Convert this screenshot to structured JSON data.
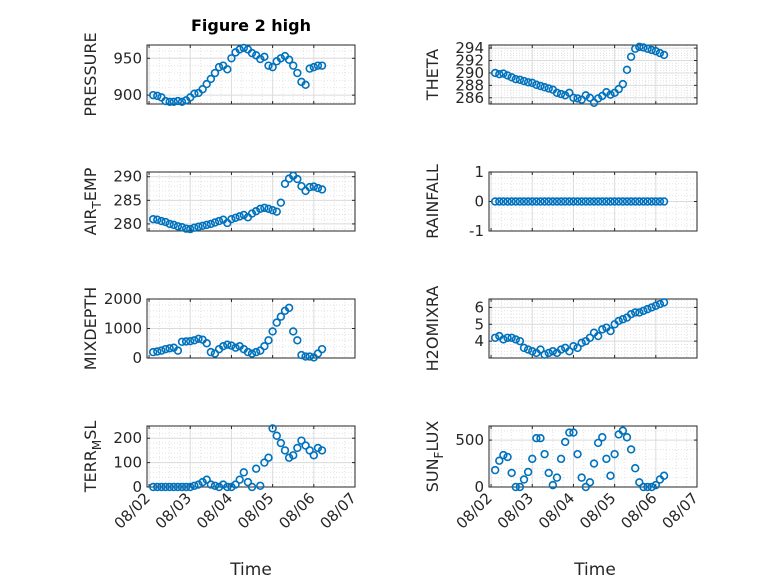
{
  "figure": {
    "title": "Figure 2 high",
    "xlabel": "Time",
    "marker_color": "#0072bd"
  },
  "x_ticks": [
    "08/02",
    "08/03",
    "08/04",
    "08/05",
    "08/06",
    "08/07"
  ],
  "chart_data": [
    {
      "type": "scatter",
      "ylabel": "PRESSURE",
      "grid": true,
      "xlim": [
        "08/02",
        "08/07"
      ],
      "ylim": [
        888,
        968
      ],
      "yticks": [
        900,
        950
      ],
      "x": [
        2.1,
        2.2,
        2.3,
        2.4,
        2.5,
        2.6,
        2.7,
        2.8,
        2.9,
        3.0,
        3.1,
        3.2,
        3.3,
        3.4,
        3.5,
        3.6,
        3.7,
        3.8,
        3.9,
        4.0,
        4.1,
        4.2,
        4.3,
        4.4,
        4.5,
        4.6,
        4.7,
        4.8,
        4.9,
        5.0,
        5.1,
        5.2,
        5.3,
        5.4,
        5.5,
        5.6,
        5.7,
        5.8,
        5.9,
        6.0,
        6.1,
        6.2
      ],
      "y": [
        900,
        899,
        897,
        892,
        891,
        891,
        892,
        891,
        893,
        897,
        902,
        903,
        908,
        915,
        922,
        930,
        938,
        940,
        935,
        950,
        958,
        962,
        964,
        962,
        957,
        954,
        949,
        952,
        940,
        938,
        946,
        950,
        953,
        948,
        940,
        930,
        918,
        914,
        936,
        938,
        940,
        940
      ]
    },
    {
      "type": "scatter",
      "ylabel": "THETA",
      "grid": true,
      "xlim": [
        "08/02",
        "08/07"
      ],
      "ylim": [
        285,
        294.5
      ],
      "yticks": [
        286,
        288,
        290,
        292,
        294
      ],
      "x": [
        2.1,
        2.2,
        2.3,
        2.4,
        2.5,
        2.6,
        2.7,
        2.8,
        2.9,
        3.0,
        3.1,
        3.2,
        3.3,
        3.4,
        3.5,
        3.6,
        3.7,
        3.8,
        3.9,
        4.0,
        4.1,
        4.2,
        4.3,
        4.4,
        4.5,
        4.6,
        4.7,
        4.8,
        4.9,
        5.0,
        5.1,
        5.2,
        5.3,
        5.4,
        5.5,
        5.6,
        5.7,
        5.8,
        5.9,
        6.0,
        6.1,
        6.2
      ],
      "y": [
        290.0,
        289.8,
        289.9,
        289.6,
        289.3,
        289.0,
        288.9,
        288.7,
        288.5,
        288.4,
        288.1,
        287.9,
        287.7,
        287.5,
        287.3,
        286.8,
        286.6,
        286.4,
        286.8,
        286.0,
        285.9,
        285.7,
        286.4,
        286.0,
        285.2,
        285.9,
        286.3,
        286.9,
        286.5,
        286.8,
        287.4,
        288.2,
        290.5,
        292.6,
        293.9,
        294.2,
        294.1,
        293.9,
        293.7,
        293.5,
        293.2,
        292.9
      ]
    },
    {
      "type": "scatter",
      "ylabel": "AIR_TEMP",
      "grid": true,
      "xlim": [
        "08/02",
        "08/07"
      ],
      "ylim": [
        278.5,
        291
      ],
      "yticks": [
        280,
        285,
        290
      ],
      "x": [
        2.1,
        2.2,
        2.3,
        2.4,
        2.5,
        2.6,
        2.7,
        2.8,
        2.9,
        3.0,
        3.1,
        3.2,
        3.3,
        3.4,
        3.5,
        3.6,
        3.7,
        3.8,
        3.9,
        4.0,
        4.1,
        4.2,
        4.3,
        4.4,
        4.5,
        4.6,
        4.7,
        4.8,
        4.9,
        5.0,
        5.1,
        5.2,
        5.3,
        5.4,
        5.5,
        5.6,
        5.7,
        5.8,
        5.9,
        6.0,
        6.1,
        6.2
      ],
      "y": [
        281.0,
        280.9,
        280.6,
        280.4,
        280.0,
        279.8,
        279.5,
        279.3,
        279.0,
        278.9,
        279.2,
        279.4,
        279.6,
        279.8,
        280.0,
        280.3,
        280.6,
        280.9,
        280.2,
        281.0,
        281.3,
        281.6,
        281.9,
        281.4,
        282.2,
        282.7,
        283.2,
        283.4,
        283.2,
        282.9,
        282.6,
        284.5,
        288.5,
        289.6,
        290.2,
        289.5,
        288.0,
        287.0,
        287.8,
        287.9,
        287.6,
        287.3
      ]
    },
    {
      "type": "scatter",
      "ylabel": "RAINFALL",
      "grid": true,
      "xlim": [
        "08/02",
        "08/07"
      ],
      "ylim": [
        -1,
        1
      ],
      "yticks": [
        -1,
        0,
        1
      ],
      "x": [
        2.1,
        2.2,
        2.3,
        2.4,
        2.5,
        2.6,
        2.7,
        2.8,
        2.9,
        3.0,
        3.1,
        3.2,
        3.3,
        3.4,
        3.5,
        3.6,
        3.7,
        3.8,
        3.9,
        4.0,
        4.1,
        4.2,
        4.3,
        4.4,
        4.5,
        4.6,
        4.7,
        4.8,
        4.9,
        5.0,
        5.1,
        5.2,
        5.3,
        5.4,
        5.5,
        5.6,
        5.7,
        5.8,
        5.9,
        6.0,
        6.1,
        6.2
      ],
      "y": [
        0,
        0,
        0,
        0,
        0,
        0,
        0,
        0,
        0,
        0,
        0,
        0,
        0,
        0,
        0,
        0,
        0,
        0,
        0,
        0,
        0,
        0,
        0,
        0,
        0,
        0,
        0,
        0,
        0,
        0,
        0,
        0,
        0,
        0,
        0,
        0,
        0,
        0,
        0,
        0,
        0,
        0
      ]
    },
    {
      "type": "scatter",
      "ylabel": "MIXDEPTH",
      "grid": true,
      "xlim": [
        "08/02",
        "08/07"
      ],
      "ylim": [
        0,
        2000
      ],
      "yticks": [
        0,
        1000,
        2000
      ],
      "x": [
        2.1,
        2.2,
        2.3,
        2.4,
        2.5,
        2.6,
        2.7,
        2.8,
        2.9,
        3.0,
        3.1,
        3.2,
        3.3,
        3.4,
        3.5,
        3.6,
        3.7,
        3.8,
        3.9,
        4.0,
        4.1,
        4.2,
        4.3,
        4.4,
        4.5,
        4.6,
        4.7,
        4.8,
        4.9,
        5.0,
        5.1,
        5.2,
        5.3,
        5.4,
        5.5,
        5.6,
        5.7,
        5.8,
        5.9,
        6.0,
        6.1,
        6.2
      ],
      "y": [
        200,
        220,
        250,
        300,
        330,
        350,
        250,
        550,
        560,
        570,
        600,
        650,
        620,
        500,
        200,
        150,
        300,
        400,
        450,
        420,
        350,
        400,
        300,
        200,
        150,
        200,
        250,
        400,
        600,
        900,
        1200,
        1400,
        1600,
        1700,
        900,
        600,
        100,
        50,
        50,
        20,
        150,
        300
      ]
    },
    {
      "type": "scatter",
      "ylabel": "H2OMIXRA",
      "grid": true,
      "xlim": [
        "08/02",
        "08/07"
      ],
      "ylim": [
        3,
        6.5
      ],
      "yticks": [
        4,
        5,
        6
      ],
      "x": [
        2.1,
        2.2,
        2.3,
        2.4,
        2.5,
        2.6,
        2.7,
        2.8,
        2.9,
        3.0,
        3.1,
        3.2,
        3.3,
        3.4,
        3.5,
        3.6,
        3.7,
        3.8,
        3.9,
        4.0,
        4.1,
        4.2,
        4.3,
        4.4,
        4.5,
        4.6,
        4.7,
        4.8,
        4.9,
        5.0,
        5.1,
        5.2,
        5.3,
        5.4,
        5.5,
        5.6,
        5.7,
        5.8,
        5.9,
        6.0,
        6.1,
        6.2
      ],
      "y": [
        4.2,
        4.3,
        4.1,
        4.2,
        4.2,
        4.1,
        4.0,
        3.6,
        3.5,
        3.4,
        3.3,
        3.5,
        3.2,
        3.3,
        3.4,
        3.3,
        3.5,
        3.6,
        3.4,
        3.7,
        3.6,
        3.9,
        4.0,
        4.2,
        4.5,
        4.3,
        4.7,
        4.8,
        4.6,
        5.0,
        5.2,
        5.3,
        5.4,
        5.6,
        5.7,
        5.7,
        5.8,
        5.9,
        6.0,
        6.1,
        6.2,
        6.3
      ]
    },
    {
      "type": "scatter",
      "ylabel": "TERR_MSL",
      "grid": true,
      "xlim": [
        "08/02",
        "08/07"
      ],
      "ylim": [
        0,
        250
      ],
      "yticks": [
        0,
        100,
        200
      ],
      "x": [
        2.1,
        2.2,
        2.3,
        2.4,
        2.5,
        2.6,
        2.7,
        2.8,
        2.9,
        3.0,
        3.1,
        3.2,
        3.3,
        3.4,
        3.5,
        3.6,
        3.7,
        3.8,
        3.9,
        4.0,
        4.1,
        4.2,
        4.3,
        4.4,
        4.5,
        4.6,
        4.7,
        4.8,
        4.9,
        5.0,
        5.1,
        5.2,
        5.3,
        5.4,
        5.5,
        5.6,
        5.7,
        5.8,
        5.9,
        6.0,
        6.1,
        6.2
      ],
      "y": [
        0,
        0,
        0,
        0,
        0,
        0,
        0,
        0,
        0,
        0,
        5,
        10,
        20,
        30,
        10,
        5,
        0,
        10,
        0,
        0,
        10,
        30,
        60,
        20,
        0,
        75,
        5,
        100,
        120,
        240,
        210,
        180,
        150,
        120,
        130,
        160,
        190,
        170,
        150,
        130,
        160,
        150
      ]
    },
    {
      "type": "scatter",
      "ylabel": "SUN_FLUX",
      "grid": true,
      "xlim": [
        "08/02",
        "08/07"
      ],
      "ylim": [
        0,
        650
      ],
      "yticks": [
        0,
        500
      ],
      "x": [
        2.1,
        2.2,
        2.3,
        2.4,
        2.5,
        2.6,
        2.7,
        2.8,
        2.9,
        3.0,
        3.1,
        3.2,
        3.3,
        3.4,
        3.5,
        3.6,
        3.7,
        3.8,
        3.9,
        4.0,
        4.1,
        4.2,
        4.3,
        4.4,
        4.5,
        4.6,
        4.7,
        4.8,
        4.9,
        5.0,
        5.1,
        5.2,
        5.3,
        5.4,
        5.5,
        5.6,
        5.7,
        5.8,
        5.9,
        6.0,
        6.1,
        6.2
      ],
      "y": [
        180,
        280,
        340,
        320,
        150,
        0,
        0,
        80,
        160,
        300,
        520,
        520,
        350,
        150,
        20,
        100,
        300,
        480,
        580,
        580,
        350,
        100,
        0,
        50,
        250,
        470,
        530,
        300,
        120,
        350,
        560,
        600,
        530,
        400,
        200,
        50,
        0,
        0,
        0,
        20,
        80,
        120
      ]
    }
  ]
}
